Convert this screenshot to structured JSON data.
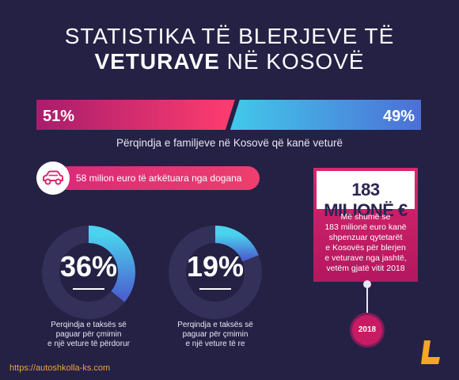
{
  "header": {
    "title_line1": "STATISTIKA TË BLERJEVE TË",
    "title_bold": "VETURAVE",
    "title_rest": " NË KOSOVË"
  },
  "chart_data": [
    {
      "type": "bar",
      "orientation": "horizontal-split",
      "categories": [
        "51%",
        "49%"
      ],
      "values": [
        51,
        49
      ],
      "title": "Përqindja e familjeve në Kosovë që kanë veturë",
      "colors": [
        "#e0317a",
        "#3fb5e8"
      ]
    },
    {
      "type": "pie",
      "style": "donut",
      "value_percent": 36,
      "label": "36%",
      "caption": [
        "Perqindja e taksës së",
        "paguar për çmimin",
        "e një veture të përdorur"
      ]
    },
    {
      "type": "pie",
      "style": "donut",
      "value_percent": 19,
      "label": "19%",
      "caption": [
        "Perqindja e taksës së",
        "paguar për çmimin",
        "e një veture të re"
      ]
    }
  ],
  "car_stat": {
    "icon": "car-icon",
    "text": "58 milion euro të arkëtuara nga dogana"
  },
  "money_box": {
    "amount": "183 MILIONË €",
    "description": [
      "Më shumë se",
      "183 milionë euro kanë",
      "shpenzuar qytetarët",
      "e Kosovës për blerjen",
      "e veturave nga jashtë,",
      "vetëm gjatë vitit 2018"
    ],
    "year": "2018"
  },
  "footer": {
    "url": "https://autoshkolla-ks.com",
    "logo": "L-logo-icon"
  },
  "colors": {
    "background": "#242145",
    "pink": "#e0317a",
    "blue": "#3fb5e8",
    "ring_dark": "#33305a",
    "url": "#f2a23b",
    "logo": "#f5a623"
  }
}
